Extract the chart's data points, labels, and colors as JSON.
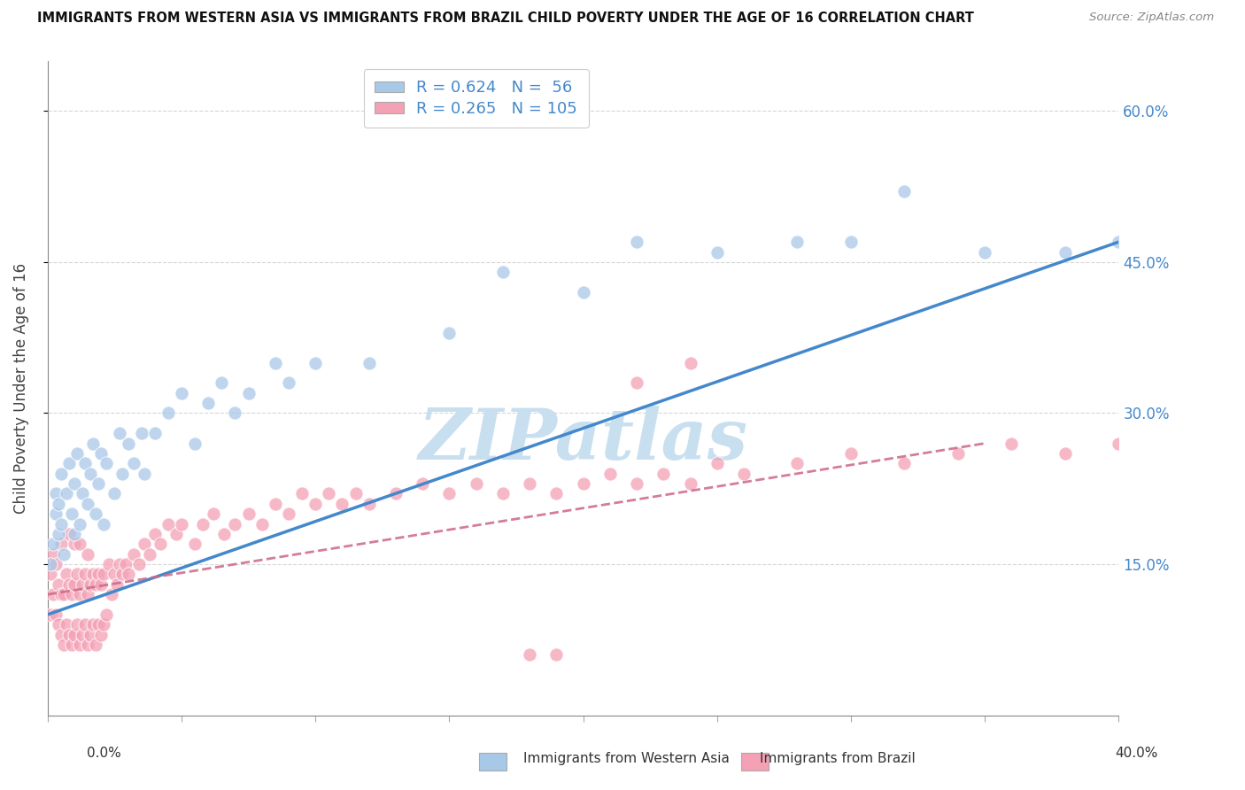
{
  "title": "IMMIGRANTS FROM WESTERN ASIA VS IMMIGRANTS FROM BRAZIL CHILD POVERTY UNDER THE AGE OF 16 CORRELATION CHART",
  "source": "Source: ZipAtlas.com",
  "ylabel": "Child Poverty Under the Age of 16",
  "legend_label1": "Immigrants from Western Asia",
  "legend_label2": "Immigrants from Brazil",
  "R1": "0.624",
  "N1": "56",
  "R2": "0.265",
  "N2": "105",
  "color_blue": "#a8c8e8",
  "color_pink": "#f4a0b5",
  "color_blue_line": "#4488cc",
  "color_pink_line": "#cc6688",
  "color_blue_text": "#4488cc",
  "watermark_color": "#c8dff0",
  "background_color": "#ffffff",
  "grid_color": "#cccccc",
  "wa_x": [
    0.001,
    0.002,
    0.003,
    0.003,
    0.004,
    0.004,
    0.005,
    0.005,
    0.006,
    0.007,
    0.008,
    0.009,
    0.01,
    0.01,
    0.011,
    0.012,
    0.013,
    0.014,
    0.015,
    0.016,
    0.017,
    0.018,
    0.019,
    0.02,
    0.021,
    0.022,
    0.025,
    0.027,
    0.028,
    0.03,
    0.032,
    0.035,
    0.036,
    0.04,
    0.045,
    0.05,
    0.055,
    0.06,
    0.065,
    0.07,
    0.075,
    0.085,
    0.09,
    0.1,
    0.12,
    0.15,
    0.17,
    0.2,
    0.22,
    0.25,
    0.28,
    0.3,
    0.32,
    0.35,
    0.38,
    0.4
  ],
  "wa_y": [
    0.15,
    0.17,
    0.2,
    0.22,
    0.18,
    0.21,
    0.19,
    0.24,
    0.16,
    0.22,
    0.25,
    0.2,
    0.18,
    0.23,
    0.26,
    0.19,
    0.22,
    0.25,
    0.21,
    0.24,
    0.27,
    0.2,
    0.23,
    0.26,
    0.19,
    0.25,
    0.22,
    0.28,
    0.24,
    0.27,
    0.25,
    0.28,
    0.24,
    0.28,
    0.3,
    0.32,
    0.27,
    0.31,
    0.33,
    0.3,
    0.32,
    0.35,
    0.33,
    0.35,
    0.35,
    0.38,
    0.44,
    0.42,
    0.47,
    0.46,
    0.47,
    0.47,
    0.52,
    0.46,
    0.46,
    0.47
  ],
  "br_x": [
    0.001,
    0.001,
    0.002,
    0.002,
    0.003,
    0.003,
    0.004,
    0.004,
    0.005,
    0.005,
    0.005,
    0.006,
    0.006,
    0.007,
    0.007,
    0.008,
    0.008,
    0.008,
    0.009,
    0.009,
    0.01,
    0.01,
    0.01,
    0.011,
    0.011,
    0.012,
    0.012,
    0.012,
    0.013,
    0.013,
    0.014,
    0.014,
    0.015,
    0.015,
    0.015,
    0.016,
    0.016,
    0.017,
    0.017,
    0.018,
    0.018,
    0.019,
    0.019,
    0.02,
    0.02,
    0.021,
    0.021,
    0.022,
    0.023,
    0.024,
    0.025,
    0.026,
    0.027,
    0.028,
    0.029,
    0.03,
    0.032,
    0.034,
    0.036,
    0.038,
    0.04,
    0.042,
    0.045,
    0.048,
    0.05,
    0.055,
    0.058,
    0.062,
    0.066,
    0.07,
    0.075,
    0.08,
    0.085,
    0.09,
    0.095,
    0.1,
    0.105,
    0.11,
    0.115,
    0.12,
    0.13,
    0.14,
    0.15,
    0.16,
    0.17,
    0.18,
    0.19,
    0.2,
    0.21,
    0.22,
    0.23,
    0.24,
    0.25,
    0.26,
    0.28,
    0.3,
    0.32,
    0.34,
    0.36,
    0.38,
    0.4,
    0.22,
    0.24,
    0.18,
    0.19
  ],
  "br_y": [
    0.1,
    0.14,
    0.12,
    0.16,
    0.1,
    0.15,
    0.09,
    0.13,
    0.08,
    0.12,
    0.17,
    0.07,
    0.12,
    0.09,
    0.14,
    0.08,
    0.13,
    0.18,
    0.07,
    0.12,
    0.08,
    0.13,
    0.17,
    0.09,
    0.14,
    0.07,
    0.12,
    0.17,
    0.08,
    0.13,
    0.09,
    0.14,
    0.07,
    0.12,
    0.16,
    0.08,
    0.13,
    0.09,
    0.14,
    0.07,
    0.13,
    0.09,
    0.14,
    0.08,
    0.13,
    0.09,
    0.14,
    0.1,
    0.15,
    0.12,
    0.14,
    0.13,
    0.15,
    0.14,
    0.15,
    0.14,
    0.16,
    0.15,
    0.17,
    0.16,
    0.18,
    0.17,
    0.19,
    0.18,
    0.19,
    0.17,
    0.19,
    0.2,
    0.18,
    0.19,
    0.2,
    0.19,
    0.21,
    0.2,
    0.22,
    0.21,
    0.22,
    0.21,
    0.22,
    0.21,
    0.22,
    0.23,
    0.22,
    0.23,
    0.22,
    0.23,
    0.22,
    0.23,
    0.24,
    0.23,
    0.24,
    0.23,
    0.25,
    0.24,
    0.25,
    0.26,
    0.25,
    0.26,
    0.27,
    0.26,
    0.27,
    0.33,
    0.35,
    0.06,
    0.06
  ],
  "wa_line_x": [
    0.0,
    0.4
  ],
  "wa_line_y": [
    0.1,
    0.47
  ],
  "br_line_x": [
    0.0,
    0.35
  ],
  "br_line_y": [
    0.12,
    0.27
  ],
  "xlim": [
    0.0,
    0.4
  ],
  "ylim": [
    0.0,
    0.65
  ],
  "ytick_vals": [
    0.15,
    0.3,
    0.45,
    0.6
  ],
  "ytick_labels": [
    "15.0%",
    "30.0%",
    "45.0%",
    "60.0%"
  ]
}
